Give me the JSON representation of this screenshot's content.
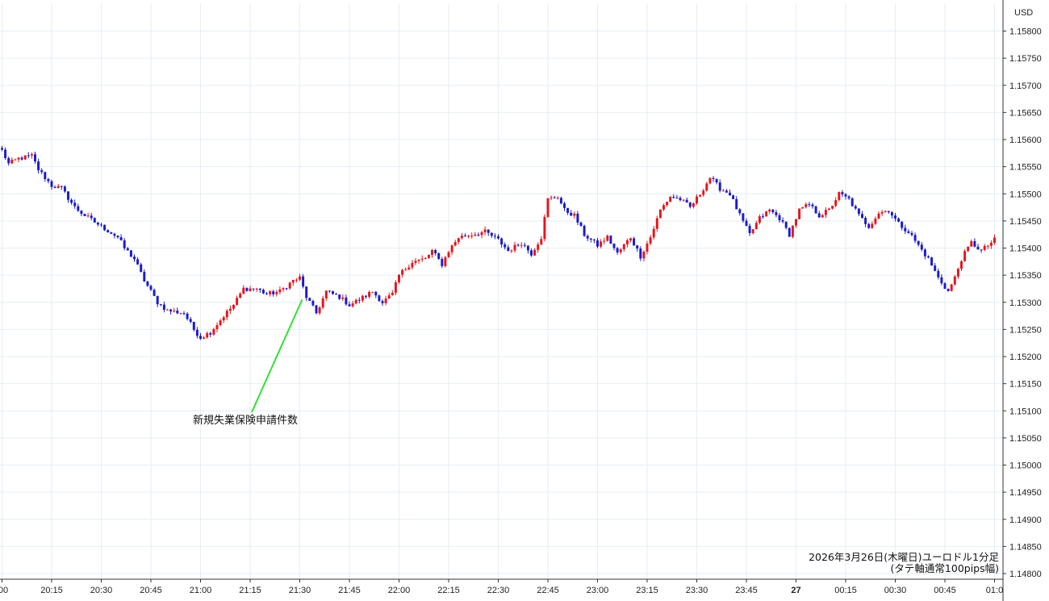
{
  "chart_data": {
    "type": "candlestick",
    "currency": "USD",
    "caption_line1": "2026年3月26日(木曜日)ユーロドル1分足",
    "caption_line2": "(タテ軸通常100pips幅)",
    "annotation": "新規失業保険申請件数",
    "annotation_time": "21:30",
    "ylim": [
      1.1479,
      1.1583
    ],
    "y_ticks": [
      "1.15800",
      "1.15750",
      "1.15700",
      "1.15650",
      "1.15600",
      "1.15550",
      "1.15500",
      "1.15450",
      "1.15400",
      "1.15350",
      "1.15300",
      "1.15250",
      "1.15200",
      "1.15150",
      "1.15100",
      "1.15050",
      "1.15000",
      "1.14950",
      "1.14900",
      "1.14850",
      "1.14800"
    ],
    "x_ticks": [
      ":00",
      "20:15",
      "20:30",
      "20:45",
      "21:00",
      "21:15",
      "21:30",
      "21:45",
      "22:00",
      "22:15",
      "22:30",
      "22:45",
      "23:00",
      "23:15",
      "23:30",
      "23:45",
      "27",
      "00:15",
      "00:30",
      "00:45",
      "01:0"
    ],
    "x_range": [
      "20:00",
      "01:00"
    ],
    "price_path": [
      [
        "20:00",
        1.1558
      ],
      [
        "20:02",
        1.15555
      ],
      [
        "20:05",
        1.15565
      ],
      [
        "20:09",
        1.1557
      ],
      [
        "20:11",
        1.15545
      ],
      [
        "20:15",
        1.15515
      ],
      [
        "20:18",
        1.1551
      ],
      [
        "20:22",
        1.15475
      ],
      [
        "20:25",
        1.1546
      ],
      [
        "20:30",
        1.1544
      ],
      [
        "20:35",
        1.1542
      ],
      [
        "20:37",
        1.154
      ],
      [
        "20:40",
        1.1538
      ],
      [
        "20:43",
        1.1534
      ],
      [
        "20:47",
        1.153
      ],
      [
        "20:50",
        1.15285
      ],
      [
        "20:55",
        1.1528
      ],
      [
        "20:58",
        1.1525
      ],
      [
        "21:00",
        1.15235
      ],
      [
        "21:03",
        1.15245
      ],
      [
        "21:07",
        1.15275
      ],
      [
        "21:10",
        1.15295
      ],
      [
        "21:13",
        1.15325
      ],
      [
        "21:17",
        1.15325
      ],
      [
        "21:20",
        1.15315
      ],
      [
        "21:24",
        1.1532
      ],
      [
        "21:28",
        1.1534
      ],
      [
        "21:30",
        1.15345
      ],
      [
        "21:32",
        1.1531
      ],
      [
        "21:35",
        1.1528
      ],
      [
        "21:38",
        1.1532
      ],
      [
        "21:42",
        1.1531
      ],
      [
        "21:45",
        1.15295
      ],
      [
        "21:48",
        1.15305
      ],
      [
        "21:52",
        1.1532
      ],
      [
        "21:55",
        1.153
      ],
      [
        "21:58",
        1.15315
      ],
      [
        "22:00",
        1.1535
      ],
      [
        "22:04",
        1.15375
      ],
      [
        "22:08",
        1.1538
      ],
      [
        "22:10",
        1.15395
      ],
      [
        "22:13",
        1.1537
      ],
      [
        "22:15",
        1.15395
      ],
      [
        "22:18",
        1.1542
      ],
      [
        "22:22",
        1.15425
      ],
      [
        "22:26",
        1.1543
      ],
      [
        "22:30",
        1.15415
      ],
      [
        "22:33",
        1.15395
      ],
      [
        "22:37",
        1.1541
      ],
      [
        "22:40",
        1.1539
      ],
      [
        "22:43",
        1.1542
      ],
      [
        "22:45",
        1.1549
      ],
      [
        "22:48",
        1.15495
      ],
      [
        "22:50",
        1.1547
      ],
      [
        "22:53",
        1.1546
      ],
      [
        "22:56",
        1.15425
      ],
      [
        "23:00",
        1.15405
      ],
      [
        "23:03",
        1.1542
      ],
      [
        "23:06",
        1.1539
      ],
      [
        "23:10",
        1.1542
      ],
      [
        "23:13",
        1.15385
      ],
      [
        "23:16",
        1.1542
      ],
      [
        "23:19",
        1.1547
      ],
      [
        "23:22",
        1.15495
      ],
      [
        "23:25",
        1.1549
      ],
      [
        "23:28",
        1.15475
      ],
      [
        "23:31",
        1.155
      ],
      [
        "23:34",
        1.1553
      ],
      [
        "23:37",
        1.1551
      ],
      [
        "23:40",
        1.155
      ],
      [
        "23:43",
        1.1546
      ],
      [
        "23:46",
        1.15425
      ],
      [
        "23:49",
        1.15455
      ],
      [
        "23:52",
        1.1547
      ],
      [
        "23:55",
        1.15455
      ],
      [
        "23:58",
        1.15425
      ],
      [
        "00:01",
        1.1547
      ],
      [
        "00:04",
        1.1548
      ],
      [
        "00:07",
        1.1546
      ],
      [
        "00:10",
        1.1547
      ],
      [
        "00:13",
        1.155
      ],
      [
        "00:16",
        1.1549
      ],
      [
        "00:19",
        1.1546
      ],
      [
        "00:22",
        1.1544
      ],
      [
        "00:25",
        1.15465
      ],
      [
        "00:28",
        1.1547
      ],
      [
        "00:31",
        1.15445
      ],
      [
        "00:34",
        1.1543
      ],
      [
        "00:37",
        1.15405
      ],
      [
        "00:40",
        1.1538
      ],
      [
        "00:43",
        1.15345
      ],
      [
        "00:46",
        1.1532
      ],
      [
        "00:48",
        1.15345
      ],
      [
        "00:50",
        1.1538
      ],
      [
        "00:53",
        1.1541
      ],
      [
        "00:56",
        1.15395
      ],
      [
        "01:00",
        1.15415
      ]
    ]
  },
  "colors": {
    "up": "#e8141b",
    "down": "#1a1acd",
    "grid": "#e6eef3",
    "annotation_line": "#33e033",
    "axis": "#333333"
  }
}
